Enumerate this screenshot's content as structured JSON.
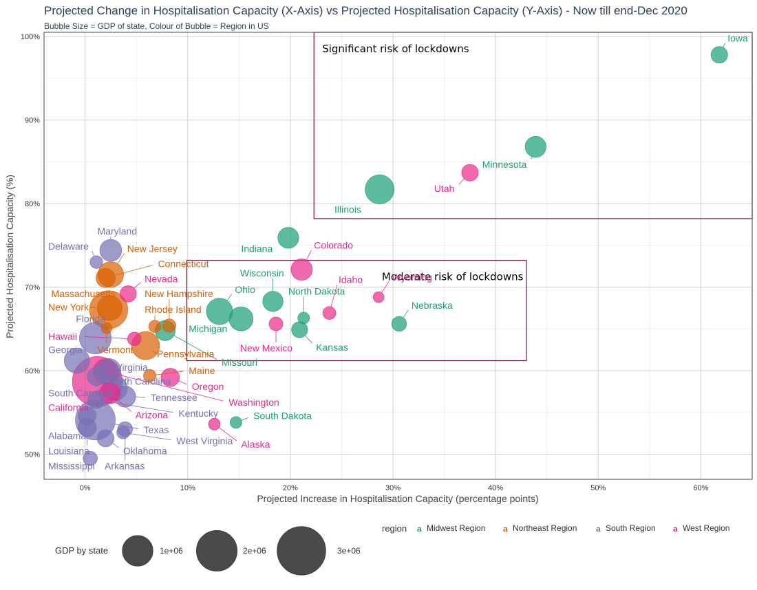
{
  "chart_data": {
    "type": "scatter",
    "title": "Projected Change in Hospitalisation Capacity (X-Axis) vs Projected Hospitalisation Capacity (Y-Axis) - Now till end-Dec 2020",
    "subtitle": "Bubble Size = GDP of state, Colour of Bubble = Region in US",
    "xlabel": "Projected Increase in Hospitalisation Capacity (percentage points)",
    "ylabel": "Projected Hospitalisation Capacity (%)",
    "xlim": [
      -4,
      65
    ],
    "ylim": [
      47,
      100.5
    ],
    "x_ticks": [
      0,
      10,
      20,
      30,
      40,
      50,
      60
    ],
    "x_tick_labels": [
      "0%",
      "10%",
      "20%",
      "30%",
      "40%",
      "50%",
      "60%"
    ],
    "y_ticks": [
      50,
      60,
      70,
      80,
      90,
      100
    ],
    "y_tick_labels": [
      "50%",
      "60%",
      "70%",
      "80%",
      "90%",
      "100%"
    ],
    "grid": true,
    "regions": [
      {
        "name": "Midwest Region",
        "color": "#1b9e77"
      },
      {
        "name": "Northeast Region",
        "color": "#d95f02"
      },
      {
        "name": "South Region",
        "color": "#7570b3"
      },
      {
        "name": "West Region",
        "color": "#e7298a"
      }
    ],
    "legend_region_title": "region",
    "legend_size_title": "GDP by state",
    "legend_sizes": [
      {
        "value": 1000000,
        "label": "1e+06"
      },
      {
        "value": 2000000,
        "label": "2e+06"
      },
      {
        "value": 3000000,
        "label": "3e+06"
      }
    ],
    "annotations": [
      {
        "text": "Significant risk of lockdowns",
        "x_range": [
          22.3,
          65
        ],
        "y_range": [
          78.2,
          100.5
        ]
      },
      {
        "text": "Moderate risk of lockdowns",
        "x_range": [
          9.9,
          43
        ],
        "y_range": [
          61.2,
          73.2
        ]
      }
    ],
    "points": [
      {
        "state": "Iowa",
        "region": 0,
        "x": 61.8,
        "y": 97.8,
        "gdp": 190000
      },
      {
        "state": "Minnesota",
        "region": 0,
        "x": 43.9,
        "y": 86.8,
        "gdp": 370000
      },
      {
        "state": "Illinois",
        "region": 0,
        "x": 28.7,
        "y": 81.7,
        "gdp": 880000
      },
      {
        "state": "Utah",
        "region": 3,
        "x": 37.5,
        "y": 83.7,
        "gdp": 190000
      },
      {
        "state": "Indiana",
        "region": 0,
        "x": 19.8,
        "y": 75.9,
        "gdp": 370000
      },
      {
        "state": "Colorado",
        "region": 3,
        "x": 21.1,
        "y": 72.1,
        "gdp": 390000
      },
      {
        "state": "Wisconsin",
        "region": 0,
        "x": 18.3,
        "y": 68.3,
        "gdp": 340000
      },
      {
        "state": "Ohio",
        "region": 0,
        "x": 13.1,
        "y": 67.1,
        "gdp": 690000
      },
      {
        "state": "Michigan",
        "region": 0,
        "x": 15.2,
        "y": 66.2,
        "gdp": 540000
      },
      {
        "state": "North Dakota",
        "region": 0,
        "x": 21.3,
        "y": 66.3,
        "gdp": 55000
      },
      {
        "state": "Kansas",
        "region": 0,
        "x": 20.9,
        "y": 64.9,
        "gdp": 170000
      },
      {
        "state": "Nebraska",
        "region": 0,
        "x": 30.6,
        "y": 65.6,
        "gdp": 130000
      },
      {
        "state": "Idaho",
        "region": 3,
        "x": 23.8,
        "y": 66.9,
        "gdp": 80000
      },
      {
        "state": "Wyoming",
        "region": 3,
        "x": 28.6,
        "y": 68.8,
        "gdp": 40000
      },
      {
        "state": "New Mexico",
        "region": 3,
        "x": 18.6,
        "y": 65.6,
        "gdp": 100000
      },
      {
        "state": "Missouri",
        "region": 0,
        "x": 7.8,
        "y": 64.8,
        "gdp": 330000
      },
      {
        "state": "South Dakota",
        "region": 0,
        "x": 14.7,
        "y": 53.8,
        "gdp": 55000
      },
      {
        "state": "Alaska",
        "region": 3,
        "x": 12.6,
        "y": 53.6,
        "gdp": 55000
      },
      {
        "state": "Maryland",
        "region": 2,
        "x": 2.5,
        "y": 74.4,
        "gdp": 420000
      },
      {
        "state": "Delaware",
        "region": 2,
        "x": 1.1,
        "y": 73.0,
        "gdp": 75000
      },
      {
        "state": "New Jersey",
        "region": 1,
        "x": 2.5,
        "y": 71.5,
        "gdp": 640000
      },
      {
        "state": "Connecticut",
        "region": 1,
        "x": 2.0,
        "y": 71.1,
        "gdp": 290000
      },
      {
        "state": "Massachusetts",
        "region": 1,
        "x": 2.4,
        "y": 67.5,
        "gdp": 600000
      },
      {
        "state": "New York",
        "region": 1,
        "x": 2.3,
        "y": 67.3,
        "gdp": 1700000
      },
      {
        "state": "Nevada",
        "region": 3,
        "x": 4.2,
        "y": 69.2,
        "gdp": 180000
      },
      {
        "state": "New Hampshire",
        "region": 1,
        "x": 8.2,
        "y": 65.4,
        "gdp": 90000
      },
      {
        "state": "Rhode Island",
        "region": 1,
        "x": 6.8,
        "y": 65.3,
        "gdp": 65000
      },
      {
        "state": "Florida",
        "region": 2,
        "x": 1.0,
        "y": 63.9,
        "gdp": 1100000
      },
      {
        "state": "Vermont",
        "region": 1,
        "x": 2.1,
        "y": 65.1,
        "gdp": 40000
      },
      {
        "state": "Pennsylvania",
        "region": 1,
        "x": 5.9,
        "y": 63.0,
        "gdp": 800000
      },
      {
        "state": "Hawaii",
        "region": 3,
        "x": 4.8,
        "y": 63.8,
        "gdp": 95000
      },
      {
        "state": "Georgia",
        "region": 2,
        "x": -0.8,
        "y": 61.2,
        "gdp": 620000
      },
      {
        "state": "Virginia",
        "region": 2,
        "x": 2.3,
        "y": 60.0,
        "gdp": 560000
      },
      {
        "state": "Maine",
        "region": 1,
        "x": 6.3,
        "y": 59.4,
        "gdp": 70000
      },
      {
        "state": "Oregon",
        "region": 3,
        "x": 8.3,
        "y": 59.2,
        "gdp": 250000
      },
      {
        "state": "Washington",
        "region": 3,
        "x": 2.0,
        "y": 59.9,
        "gdp": 610000
      },
      {
        "state": "California",
        "region": 3,
        "x": 1.2,
        "y": 58.7,
        "gdp": 3200000
      },
      {
        "state": "South Carolina",
        "region": 2,
        "x": 1.1,
        "y": 59.3,
        "gdp": 250000
      },
      {
        "state": "North Carolina",
        "region": 2,
        "x": 2.9,
        "y": 57.9,
        "gdp": 590000
      },
      {
        "state": "Tennessee",
        "region": 2,
        "x": 3.9,
        "y": 56.9,
        "gdp": 380000
      },
      {
        "state": "Arizona",
        "region": 3,
        "x": 2.4,
        "y": 57.3,
        "gdp": 370000
      },
      {
        "state": "Kentucky",
        "region": 2,
        "x": 1.1,
        "y": 56.5,
        "gdp": 210000
      },
      {
        "state": "Alabama",
        "region": 2,
        "x": 0.2,
        "y": 54.6,
        "gdp": 230000
      },
      {
        "state": "Texas",
        "region": 2,
        "x": 1.0,
        "y": 54.1,
        "gdp": 1900000
      },
      {
        "state": "Louisiana",
        "region": 2,
        "x": 0.2,
        "y": 53.2,
        "gdp": 250000
      },
      {
        "state": "West Virginia",
        "region": 2,
        "x": 3.7,
        "y": 52.6,
        "gdp": 75000
      },
      {
        "state": "Oklahoma",
        "region": 2,
        "x": 2.0,
        "y": 51.9,
        "gdp": 200000
      },
      {
        "state": "Mississippi",
        "region": 2,
        "x": 0.5,
        "y": 49.5,
        "gdp": 115000
      },
      {
        "state": "Arkansas",
        "region": 2,
        "x": 3.9,
        "y": 53.0,
        "gdp": 130000
      }
    ],
    "labels": [
      {
        "state": "Iowa",
        "lx": 62.6,
        "ly": 99.4,
        "anchor": "start"
      },
      {
        "state": "Minnesota",
        "lx": 38.7,
        "ly": 84.3,
        "anchor": "start"
      },
      {
        "state": "Illinois",
        "lx": 24.3,
        "ly": 78.9,
        "anchor": "start"
      },
      {
        "state": "Utah",
        "lx": 34.0,
        "ly": 81.4,
        "anchor": "start"
      },
      {
        "state": "Indiana",
        "lx": 15.2,
        "ly": 74.2,
        "anchor": "start"
      },
      {
        "state": "Colorado",
        "lx": 22.3,
        "ly": 74.6,
        "anchor": "start"
      },
      {
        "state": "Wisconsin",
        "lx": 15.1,
        "ly": 71.3,
        "anchor": "start"
      },
      {
        "state": "Ohio",
        "lx": 14.6,
        "ly": 69.3,
        "anchor": "start"
      },
      {
        "state": "Michigan",
        "lx": 10.1,
        "ly": 64.6,
        "anchor": "start"
      },
      {
        "state": "North Dakota",
        "lx": 19.8,
        "ly": 69.1,
        "anchor": "start"
      },
      {
        "state": "Kansas",
        "lx": 22.5,
        "ly": 62.4,
        "anchor": "start"
      },
      {
        "state": "Nebraska",
        "lx": 31.8,
        "ly": 67.4,
        "anchor": "start"
      },
      {
        "state": "Idaho",
        "lx": 24.7,
        "ly": 70.5,
        "anchor": "start"
      },
      {
        "state": "Wyoming",
        "lx": 29.9,
        "ly": 70.8,
        "anchor": "start"
      },
      {
        "state": "New Mexico",
        "lx": 15.1,
        "ly": 62.3,
        "anchor": "start"
      },
      {
        "state": "Missouri",
        "lx": 13.3,
        "ly": 60.6,
        "anchor": "start"
      },
      {
        "state": "South Dakota",
        "lx": 16.4,
        "ly": 54.2,
        "anchor": "start"
      },
      {
        "state": "Alaska",
        "lx": 15.2,
        "ly": 50.8,
        "anchor": "start"
      },
      {
        "state": "Maryland",
        "lx": 1.2,
        "ly": 76.3,
        "anchor": "start"
      },
      {
        "state": "Delaware",
        "lx": -3.6,
        "ly": 74.5,
        "anchor": "start"
      },
      {
        "state": "New Jersey",
        "lx": 4.1,
        "ly": 74.2,
        "anchor": "start"
      },
      {
        "state": "Connecticut",
        "lx": 7.1,
        "ly": 72.4,
        "anchor": "start"
      },
      {
        "state": "Massachusetts",
        "lx": -3.3,
        "ly": 68.8,
        "anchor": "start"
      },
      {
        "state": "New York",
        "lx": -3.6,
        "ly": 67.2,
        "anchor": "start"
      },
      {
        "state": "Nevada",
        "lx": 5.8,
        "ly": 70.6,
        "anchor": "start"
      },
      {
        "state": "New Hampshire",
        "lx": 5.8,
        "ly": 68.8,
        "anchor": "start"
      },
      {
        "state": "Rhode Island",
        "lx": 5.8,
        "ly": 66.9,
        "anchor": "start"
      },
      {
        "state": "Florida",
        "lx": -0.9,
        "ly": 65.8,
        "anchor": "start"
      },
      {
        "state": "Vermont",
        "lx": 1.2,
        "ly": 62.1,
        "anchor": "start"
      },
      {
        "state": "Pennsylvania",
        "lx": 7.0,
        "ly": 61.6,
        "anchor": "start"
      },
      {
        "state": "Hawaii",
        "lx": -3.6,
        "ly": 63.7,
        "anchor": "start"
      },
      {
        "state": "Georgia",
        "lx": -3.6,
        "ly": 62.1,
        "anchor": "start"
      },
      {
        "state": "Virginia",
        "lx": 3.0,
        "ly": 60.0,
        "anchor": "start"
      },
      {
        "state": "Maine",
        "lx": 10.1,
        "ly": 59.6,
        "anchor": "start"
      },
      {
        "state": "Oregon",
        "lx": 10.4,
        "ly": 57.7,
        "anchor": "start"
      },
      {
        "state": "Washington",
        "lx": 14.0,
        "ly": 55.8,
        "anchor": "start"
      },
      {
        "state": "California",
        "lx": -3.6,
        "ly": 55.2,
        "anchor": "start"
      },
      {
        "state": "South Carolina",
        "lx": -3.6,
        "ly": 56.9,
        "anchor": "start"
      },
      {
        "state": "North Carolina",
        "lx": 2.3,
        "ly": 58.3,
        "anchor": "start"
      },
      {
        "state": "Tennessee",
        "lx": 6.4,
        "ly": 56.4,
        "anchor": "start"
      },
      {
        "state": "Arizona",
        "lx": 4.9,
        "ly": 54.3,
        "anchor": "start"
      },
      {
        "state": "Kentucky",
        "lx": 9.1,
        "ly": 54.5,
        "anchor": "start"
      },
      {
        "state": "Alabama",
        "lx": -3.6,
        "ly": 51.8,
        "anchor": "start"
      },
      {
        "state": "Texas",
        "lx": 5.7,
        "ly": 52.5,
        "anchor": "start"
      },
      {
        "state": "Louisiana",
        "lx": -3.6,
        "ly": 50.0,
        "anchor": "start"
      },
      {
        "state": "West Virginia",
        "lx": 8.9,
        "ly": 51.2,
        "anchor": "start"
      },
      {
        "state": "Oklahoma",
        "lx": 3.7,
        "ly": 50.0,
        "anchor": "start"
      },
      {
        "state": "Mississippi",
        "lx": -3.6,
        "ly": 48.2,
        "anchor": "start"
      },
      {
        "state": "Arkansas",
        "lx": 1.9,
        "ly": 48.2,
        "anchor": "start"
      }
    ]
  }
}
